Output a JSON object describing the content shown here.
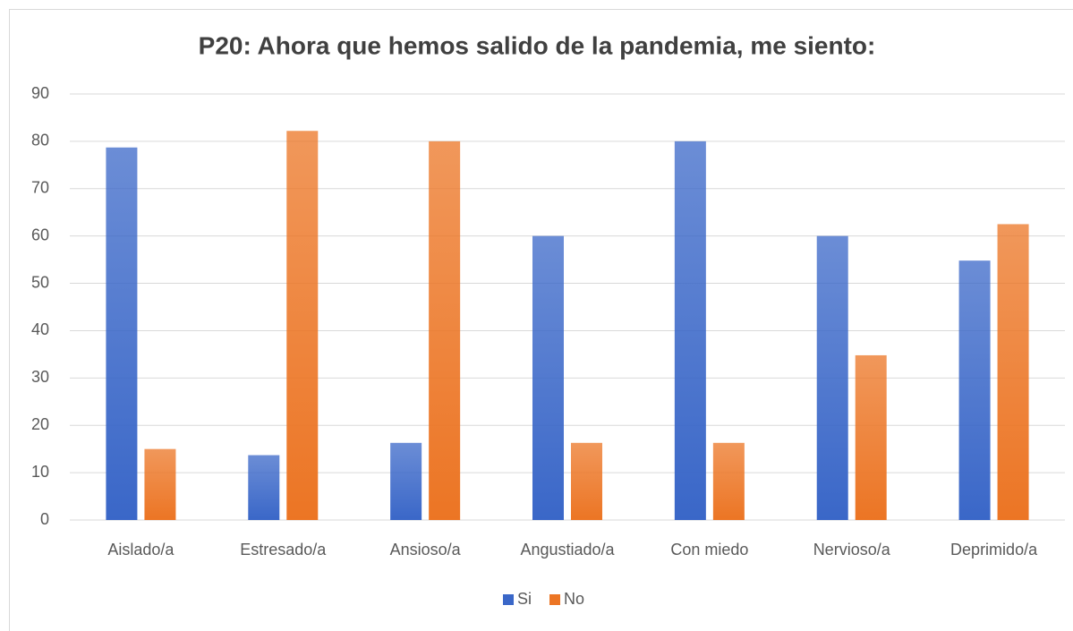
{
  "chart_data": {
    "type": "bar",
    "title": "P20: Ahora que hemos salido de la pandemia, me siento:",
    "categories": [
      "Aislado/a",
      "Estresado/a",
      "Ansioso/a",
      "Angustiado/a",
      "Con miedo",
      "Nervioso/a",
      "Deprimido/a"
    ],
    "series": [
      {
        "name": "Si",
        "color": "#3a67c8",
        "values": [
          78.7,
          13.7,
          16.3,
          60,
          80,
          60,
          54.8
        ]
      },
      {
        "name": "No",
        "color": "#ec7524",
        "values": [
          15,
          82.2,
          80,
          16.3,
          16.3,
          34.8,
          62.5
        ]
      }
    ],
    "ylim": [
      0,
      90
    ],
    "yticks": [
      0,
      10,
      20,
      30,
      40,
      50,
      60,
      70,
      80,
      90
    ],
    "grid": true,
    "legend": "bottom"
  }
}
